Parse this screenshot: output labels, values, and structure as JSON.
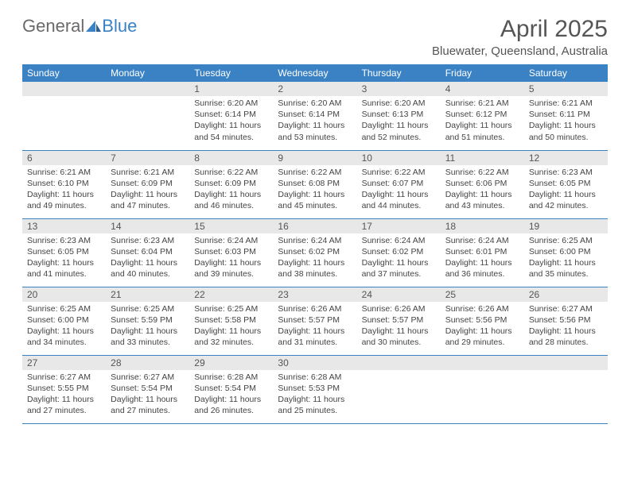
{
  "brand": {
    "part1": "General",
    "part2": "Blue"
  },
  "title": "April 2025",
  "location": "Bluewater, Queensland, Australia",
  "colors": {
    "accent": "#3a82c4",
    "header_bg": "#3a82c4",
    "daynum_bg": "#e8e8e8",
    "text": "#444444"
  },
  "weekday_labels": [
    "Sunday",
    "Monday",
    "Tuesday",
    "Wednesday",
    "Thursday",
    "Friday",
    "Saturday"
  ],
  "weeks": [
    [
      {
        "n": "",
        "sr": "",
        "ss": "",
        "dl": ""
      },
      {
        "n": "",
        "sr": "",
        "ss": "",
        "dl": ""
      },
      {
        "n": "1",
        "sr": "Sunrise: 6:20 AM",
        "ss": "Sunset: 6:14 PM",
        "dl": "Daylight: 11 hours and 54 minutes."
      },
      {
        "n": "2",
        "sr": "Sunrise: 6:20 AM",
        "ss": "Sunset: 6:14 PM",
        "dl": "Daylight: 11 hours and 53 minutes."
      },
      {
        "n": "3",
        "sr": "Sunrise: 6:20 AM",
        "ss": "Sunset: 6:13 PM",
        "dl": "Daylight: 11 hours and 52 minutes."
      },
      {
        "n": "4",
        "sr": "Sunrise: 6:21 AM",
        "ss": "Sunset: 6:12 PM",
        "dl": "Daylight: 11 hours and 51 minutes."
      },
      {
        "n": "5",
        "sr": "Sunrise: 6:21 AM",
        "ss": "Sunset: 6:11 PM",
        "dl": "Daylight: 11 hours and 50 minutes."
      }
    ],
    [
      {
        "n": "6",
        "sr": "Sunrise: 6:21 AM",
        "ss": "Sunset: 6:10 PM",
        "dl": "Daylight: 11 hours and 49 minutes."
      },
      {
        "n": "7",
        "sr": "Sunrise: 6:21 AM",
        "ss": "Sunset: 6:09 PM",
        "dl": "Daylight: 11 hours and 47 minutes."
      },
      {
        "n": "8",
        "sr": "Sunrise: 6:22 AM",
        "ss": "Sunset: 6:09 PM",
        "dl": "Daylight: 11 hours and 46 minutes."
      },
      {
        "n": "9",
        "sr": "Sunrise: 6:22 AM",
        "ss": "Sunset: 6:08 PM",
        "dl": "Daylight: 11 hours and 45 minutes."
      },
      {
        "n": "10",
        "sr": "Sunrise: 6:22 AM",
        "ss": "Sunset: 6:07 PM",
        "dl": "Daylight: 11 hours and 44 minutes."
      },
      {
        "n": "11",
        "sr": "Sunrise: 6:22 AM",
        "ss": "Sunset: 6:06 PM",
        "dl": "Daylight: 11 hours and 43 minutes."
      },
      {
        "n": "12",
        "sr": "Sunrise: 6:23 AM",
        "ss": "Sunset: 6:05 PM",
        "dl": "Daylight: 11 hours and 42 minutes."
      }
    ],
    [
      {
        "n": "13",
        "sr": "Sunrise: 6:23 AM",
        "ss": "Sunset: 6:05 PM",
        "dl": "Daylight: 11 hours and 41 minutes."
      },
      {
        "n": "14",
        "sr": "Sunrise: 6:23 AM",
        "ss": "Sunset: 6:04 PM",
        "dl": "Daylight: 11 hours and 40 minutes."
      },
      {
        "n": "15",
        "sr": "Sunrise: 6:24 AM",
        "ss": "Sunset: 6:03 PM",
        "dl": "Daylight: 11 hours and 39 minutes."
      },
      {
        "n": "16",
        "sr": "Sunrise: 6:24 AM",
        "ss": "Sunset: 6:02 PM",
        "dl": "Daylight: 11 hours and 38 minutes."
      },
      {
        "n": "17",
        "sr": "Sunrise: 6:24 AM",
        "ss": "Sunset: 6:02 PM",
        "dl": "Daylight: 11 hours and 37 minutes."
      },
      {
        "n": "18",
        "sr": "Sunrise: 6:24 AM",
        "ss": "Sunset: 6:01 PM",
        "dl": "Daylight: 11 hours and 36 minutes."
      },
      {
        "n": "19",
        "sr": "Sunrise: 6:25 AM",
        "ss": "Sunset: 6:00 PM",
        "dl": "Daylight: 11 hours and 35 minutes."
      }
    ],
    [
      {
        "n": "20",
        "sr": "Sunrise: 6:25 AM",
        "ss": "Sunset: 6:00 PM",
        "dl": "Daylight: 11 hours and 34 minutes."
      },
      {
        "n": "21",
        "sr": "Sunrise: 6:25 AM",
        "ss": "Sunset: 5:59 PM",
        "dl": "Daylight: 11 hours and 33 minutes."
      },
      {
        "n": "22",
        "sr": "Sunrise: 6:25 AM",
        "ss": "Sunset: 5:58 PM",
        "dl": "Daylight: 11 hours and 32 minutes."
      },
      {
        "n": "23",
        "sr": "Sunrise: 6:26 AM",
        "ss": "Sunset: 5:57 PM",
        "dl": "Daylight: 11 hours and 31 minutes."
      },
      {
        "n": "24",
        "sr": "Sunrise: 6:26 AM",
        "ss": "Sunset: 5:57 PM",
        "dl": "Daylight: 11 hours and 30 minutes."
      },
      {
        "n": "25",
        "sr": "Sunrise: 6:26 AM",
        "ss": "Sunset: 5:56 PM",
        "dl": "Daylight: 11 hours and 29 minutes."
      },
      {
        "n": "26",
        "sr": "Sunrise: 6:27 AM",
        "ss": "Sunset: 5:56 PM",
        "dl": "Daylight: 11 hours and 28 minutes."
      }
    ],
    [
      {
        "n": "27",
        "sr": "Sunrise: 6:27 AM",
        "ss": "Sunset: 5:55 PM",
        "dl": "Daylight: 11 hours and 27 minutes."
      },
      {
        "n": "28",
        "sr": "Sunrise: 6:27 AM",
        "ss": "Sunset: 5:54 PM",
        "dl": "Daylight: 11 hours and 27 minutes."
      },
      {
        "n": "29",
        "sr": "Sunrise: 6:28 AM",
        "ss": "Sunset: 5:54 PM",
        "dl": "Daylight: 11 hours and 26 minutes."
      },
      {
        "n": "30",
        "sr": "Sunrise: 6:28 AM",
        "ss": "Sunset: 5:53 PM",
        "dl": "Daylight: 11 hours and 25 minutes."
      },
      {
        "n": "",
        "sr": "",
        "ss": "",
        "dl": ""
      },
      {
        "n": "",
        "sr": "",
        "ss": "",
        "dl": ""
      },
      {
        "n": "",
        "sr": "",
        "ss": "",
        "dl": ""
      }
    ]
  ]
}
